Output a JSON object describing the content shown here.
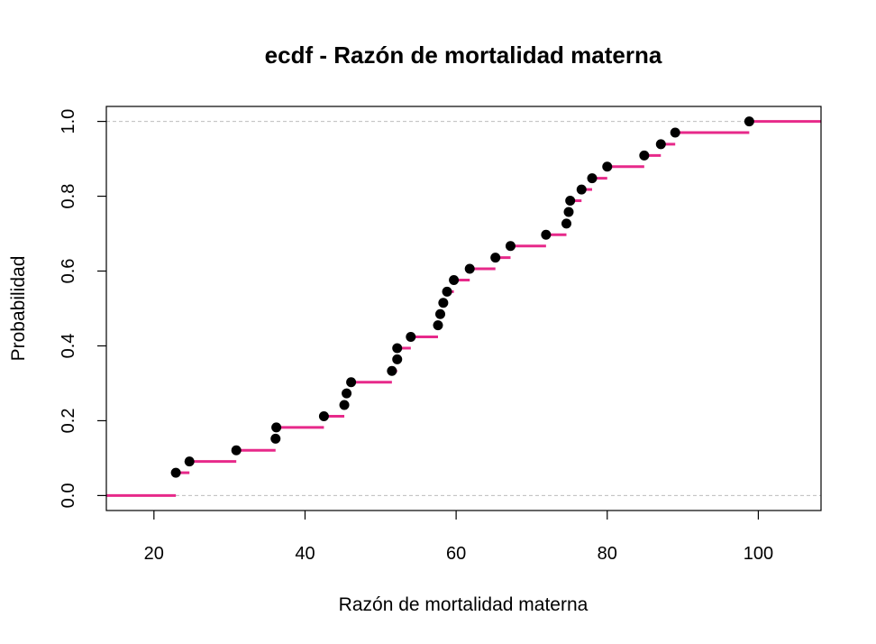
{
  "chart_data": {
    "type": "line",
    "subtype": "ecdf-step",
    "title": "ecdf - Razón de mortalidad materna",
    "xlabel": "Razón de mortalidad materna",
    "ylabel": "Probabilidad",
    "xlim": [
      13.7,
      108.3
    ],
    "ylim": [
      -0.04,
      1.04
    ],
    "x_ticks": [
      20,
      40,
      60,
      80,
      100
    ],
    "x_tick_labels": [
      "20",
      "40",
      "60",
      "80",
      "100"
    ],
    "y_ticks": [
      0.0,
      0.2,
      0.4,
      0.6,
      0.8,
      1.0
    ],
    "y_tick_labels": [
      "0.0",
      "0.2",
      "0.4",
      "0.6",
      "0.8",
      "1.0"
    ],
    "reference_lines_y": [
      0,
      1
    ],
    "grid": false,
    "legend": "none",
    "colors": {
      "step": "#e7298a",
      "point": "#000000",
      "reference": "#bdbdbd"
    },
    "points": [
      [
        22.9,
        0.061
      ],
      [
        24.7,
        0.091
      ],
      [
        30.9,
        0.121
      ],
      [
        36.1,
        0.152
      ],
      [
        36.2,
        0.182
      ],
      [
        42.5,
        0.212
      ],
      [
        45.2,
        0.242
      ],
      [
        45.5,
        0.273
      ],
      [
        46.1,
        0.303
      ],
      [
        51.5,
        0.333
      ],
      [
        52.2,
        0.364
      ],
      [
        52.2,
        0.394
      ],
      [
        54.0,
        0.424
      ],
      [
        57.6,
        0.455
      ],
      [
        57.9,
        0.485
      ],
      [
        58.3,
        0.515
      ],
      [
        58.8,
        0.545
      ],
      [
        59.7,
        0.576
      ],
      [
        61.8,
        0.606
      ],
      [
        65.2,
        0.636
      ],
      [
        67.2,
        0.667
      ],
      [
        71.9,
        0.697
      ],
      [
        74.6,
        0.727
      ],
      [
        74.9,
        0.758
      ],
      [
        75.1,
        0.788
      ],
      [
        76.6,
        0.818
      ],
      [
        78.0,
        0.848
      ],
      [
        80.0,
        0.879
      ],
      [
        84.9,
        0.909
      ],
      [
        87.1,
        0.939
      ],
      [
        89.0,
        0.97
      ],
      [
        98.8,
        1.0
      ]
    ]
  }
}
